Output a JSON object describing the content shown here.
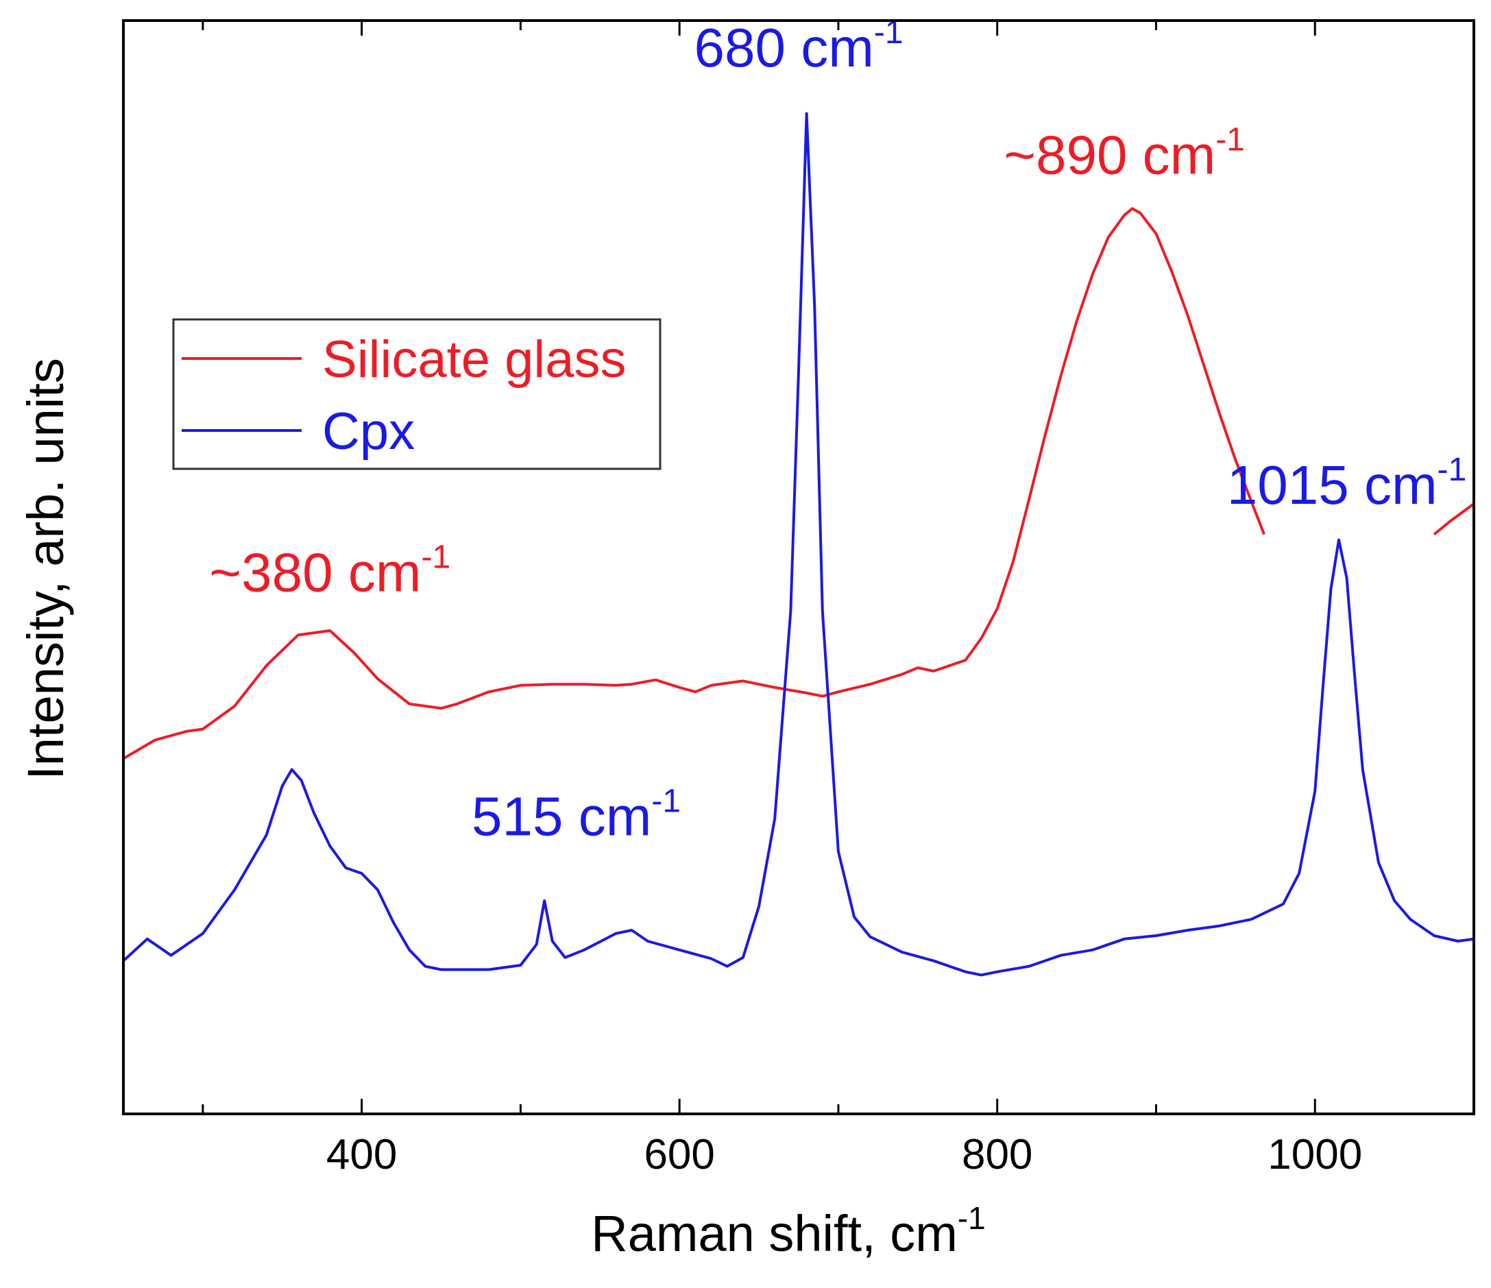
{
  "chart_data": {
    "type": "line",
    "xlabel": "Raman shift, cm",
    "xlabel_sup": "-1",
    "ylabel": "Intensity, arb. units",
    "xlim": [
      250,
      1100
    ],
    "ylim": [
      0,
      10
    ],
    "x_ticks": [
      400,
      600,
      800,
      1000
    ],
    "y_ticks_shown": false,
    "grid": false,
    "legend_position": "upper-left",
    "series": [
      {
        "name": "Silicate glass",
        "color": "#ee1c25",
        "x": [
          250,
          270,
          290,
          300,
          320,
          340,
          360,
          380,
          395,
          410,
          430,
          450,
          460,
          480,
          500,
          520,
          540,
          560,
          570,
          585,
          600,
          610,
          620,
          640,
          660,
          680,
          690,
          700,
          720,
          740,
          750,
          760,
          780,
          790,
          800,
          810,
          820,
          830,
          840,
          850,
          860,
          870,
          880,
          885,
          890,
          900,
          910,
          920,
          930,
          940,
          950,
          960,
          968
        ],
        "y": [
          3.25,
          3.42,
          3.5,
          3.52,
          3.73,
          4.1,
          4.38,
          4.42,
          4.22,
          3.98,
          3.75,
          3.71,
          3.75,
          3.86,
          3.92,
          3.93,
          3.93,
          3.92,
          3.93,
          3.97,
          3.9,
          3.86,
          3.92,
          3.96,
          3.9,
          3.85,
          3.82,
          3.86,
          3.93,
          4.02,
          4.08,
          4.05,
          4.15,
          4.35,
          4.62,
          5.05,
          5.62,
          6.2,
          6.75,
          7.25,
          7.68,
          8.02,
          8.22,
          8.28,
          8.24,
          8.05,
          7.7,
          7.3,
          6.85,
          6.4,
          5.98,
          5.6,
          5.3
        ]
      },
      {
        "name": "",
        "color": "#ee1c25",
        "x": [
          1075,
          1085,
          1100
        ],
        "y": [
          5.3,
          5.42,
          5.58
        ]
      },
      {
        "name": "Cpx",
        "color": "#1a1ae6",
        "x": [
          250,
          265,
          280,
          300,
          320,
          340,
          350,
          356,
          362,
          370,
          380,
          390,
          400,
          410,
          420,
          430,
          440,
          450,
          460,
          480,
          500,
          510,
          515,
          520,
          528,
          540,
          560,
          570,
          580,
          600,
          620,
          630,
          640,
          650,
          660,
          670,
          675,
          680,
          685,
          690,
          700,
          710,
          720,
          740,
          760,
          780,
          790,
          800,
          820,
          840,
          860,
          880,
          900,
          920,
          940,
          960,
          980,
          990,
          1000,
          1005,
          1010,
          1015,
          1020,
          1025,
          1030,
          1040,
          1050,
          1060,
          1075,
          1090,
          1100
        ],
        "y": [
          1.4,
          1.6,
          1.45,
          1.65,
          2.05,
          2.55,
          3.0,
          3.15,
          3.05,
          2.75,
          2.45,
          2.25,
          2.2,
          2.05,
          1.75,
          1.5,
          1.35,
          1.32,
          1.32,
          1.32,
          1.36,
          1.55,
          1.95,
          1.58,
          1.43,
          1.5,
          1.65,
          1.68,
          1.58,
          1.5,
          1.42,
          1.35,
          1.43,
          1.9,
          2.7,
          4.6,
          6.8,
          9.15,
          7.4,
          4.6,
          2.4,
          1.8,
          1.62,
          1.48,
          1.4,
          1.3,
          1.27,
          1.3,
          1.35,
          1.45,
          1.5,
          1.6,
          1.63,
          1.68,
          1.72,
          1.78,
          1.92,
          2.2,
          2.95,
          3.9,
          4.8,
          5.25,
          4.9,
          4.0,
          3.15,
          2.3,
          1.95,
          1.78,
          1.63,
          1.58,
          1.6
        ]
      }
    ],
    "annotations": [
      {
        "text": "~380 cm",
        "sup": "-1",
        "color": "#ee1c25",
        "x": 380,
        "y": 4.78
      },
      {
        "text": "680 cm",
        "sup": "-1",
        "color": "#1a1ae6",
        "x": 675,
        "y": 9.58
      },
      {
        "text": "~890 cm",
        "sup": "-1",
        "color": "#ee1c25",
        "x": 880,
        "y": 8.6
      },
      {
        "text": "515 cm",
        "sup": "-1",
        "color": "#1a1ae6",
        "x": 535,
        "y": 2.55
      },
      {
        "text": "1015 cm",
        "sup": "-1",
        "color": "#1a1ae6",
        "x": 1020,
        "y": 5.58
      }
    ]
  }
}
